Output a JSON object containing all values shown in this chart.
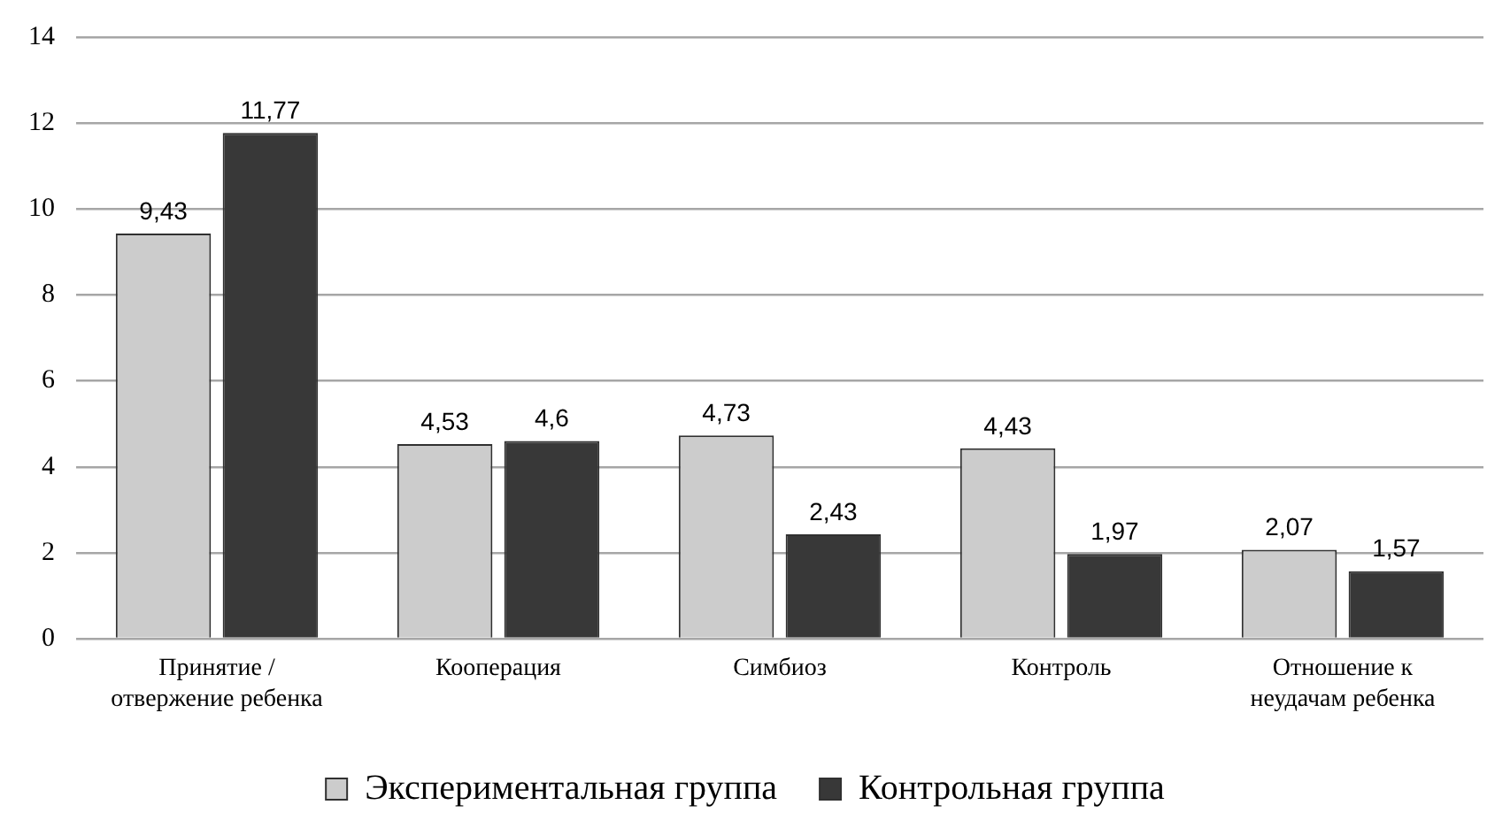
{
  "chart_data": {
    "type": "bar",
    "categories": [
      "Принятие / отвержение ребенка",
      "Кооперация",
      "Симбиоз",
      "Контроль",
      "Отношение к неудачам ребенка"
    ],
    "series": [
      {
        "name": "Экспериментальная группа",
        "color": "#cccccc",
        "values": [
          9.43,
          4.53,
          4.73,
          4.43,
          2.07
        ],
        "value_labels": [
          "9,43",
          "4,53",
          "4,73",
          "4,43",
          "2,07"
        ]
      },
      {
        "name": "Контрольная группа",
        "color": "#383838",
        "values": [
          11.77,
          4.6,
          2.43,
          1.97,
          1.57
        ],
        "value_labels": [
          "11,77",
          "4,6",
          "2,43",
          "1,97",
          "1,57"
        ]
      }
    ],
    "ylim": [
      0,
      14
    ],
    "yticks": [
      0,
      2,
      4,
      6,
      8,
      10,
      12,
      14
    ],
    "grid": "y",
    "legend": "bottom"
  }
}
